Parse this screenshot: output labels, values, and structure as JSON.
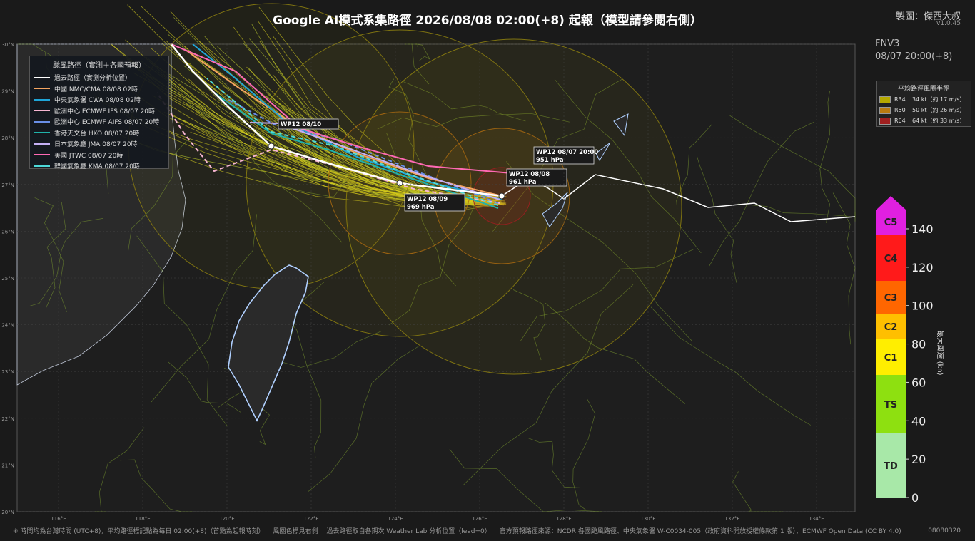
{
  "header": {
    "title": "Google AI模式系集路徑  2026/08/08 02:00(+8) 起報（模型請參閱右側）",
    "credit": "製圖：傑西大叔",
    "version": "v1.0.45"
  },
  "model": {
    "name": "FNV3",
    "time": "08/07 20:00(+8)"
  },
  "track_legend": {
    "title": "颱風路徑（實測＋各國預報）",
    "items": [
      {
        "label": "過去路徑（實測分析位置）",
        "color": "#ffffff"
      },
      {
        "label": "中國 NMC/CMA  08/08 02時",
        "color": "#f4a460"
      },
      {
        "label": "中央氣象署 CWA  08/08 02時",
        "color": "#1fa5d8"
      },
      {
        "label": "歐洲中心 ECMWF IFS  08/07 20時",
        "color": "#f7b6d2"
      },
      {
        "label": "歐洲中心 ECMWF AIFS  08/07 20時",
        "color": "#6a8fe8"
      },
      {
        "label": "香港天文台 HKO  08/07 20時",
        "color": "#20b2aa"
      },
      {
        "label": "日本氣象廳 JMA  08/07 20時",
        "color": "#c5b0f5"
      },
      {
        "label": "美國 JTWC  08/07 20時",
        "color": "#ff69b4"
      },
      {
        "label": "韓國氣象廳 KMA  08/07 20時",
        "color": "#4dd9d9"
      }
    ]
  },
  "radius_legend": {
    "title": "平均路徑風圈半徑",
    "rows": [
      {
        "name": "R34",
        "desc": "34 kt（約 17 m/s）",
        "color": "#b5a800"
      },
      {
        "name": "R50",
        "desc": "50 kt（約 26 m/s）",
        "color": "#b87a10"
      },
      {
        "name": "R64",
        "desc": "64 kt（約 33 m/s）",
        "color": "#a02020"
      }
    ]
  },
  "colorbar": {
    "label": "最大風速 (kn)",
    "ticks": [
      0,
      20,
      40,
      60,
      80,
      100,
      120,
      140
    ],
    "categories": [
      "TD",
      "TS",
      "C1",
      "C2",
      "C3",
      "C4",
      "C5"
    ]
  },
  "map": {
    "lon_labels": [
      "116°E",
      "118°E",
      "120°E",
      "122°E",
      "124°E",
      "126°E",
      "128°E",
      "130°E",
      "132°E",
      "134°E"
    ],
    "lat_labels": [
      "30°N",
      "29°N",
      "28°N",
      "27°N",
      "26°N",
      "25°N",
      "24°N",
      "23°N",
      "22°N",
      "21°N",
      "20°N"
    ],
    "annotations": [
      {
        "line1": "WP12 08/07 20:00",
        "line2": "951 hPa"
      },
      {
        "line1": "WP12 08/08",
        "line2": "961 hPa"
      },
      {
        "line1": "WP12 08/09",
        "line2": "969 hPa"
      },
      {
        "line1": "WP12 08/10"
      }
    ]
  },
  "footer": {
    "notes": [
      "※ 時間均為台灣時間 (UTC+8)，平均路徑標記點為每日 02:00(+8)（首點為起報時刻）",
      "風圈色標見右側",
      "過去路徑取自各期次 Weather Lab 分析位置（lead=0）",
      "官方預報路徑來源：NCDR 各國颱風路徑、中央氣象署 W-C0034-005（政府資料開放授權條款第 1 版）、ECMWF Open Data (CC BY 4.0)"
    ],
    "code": "08080320"
  }
}
